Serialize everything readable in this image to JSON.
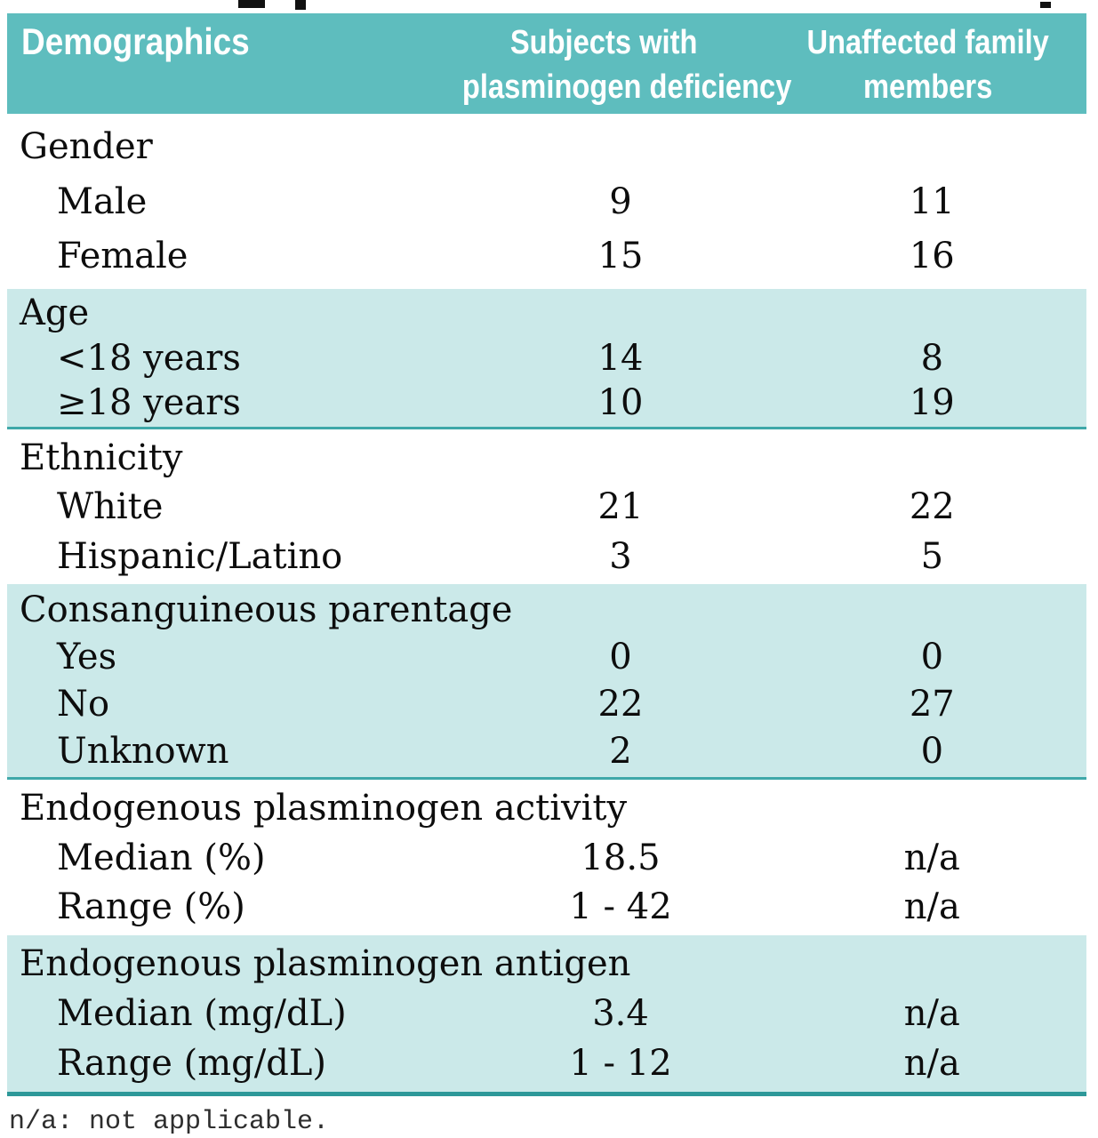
{
  "table": {
    "header": {
      "col1": "Demographics",
      "col2_line1": "Subjects with",
      "col2_line2": "plasminogen deficiency",
      "col3_line1": "Unaffected family",
      "col3_line2": "members"
    },
    "sections": [
      {
        "title": "Gender",
        "rows": [
          {
            "label": "Male",
            "v1": "9",
            "v2": "11"
          },
          {
            "label": "Female",
            "v1": "15",
            "v2": "16"
          }
        ]
      },
      {
        "title": "Age",
        "rows": [
          {
            "label": "<18 years",
            "v1": "14",
            "v2": "8"
          },
          {
            "label": "≥18 years",
            "v1": "10",
            "v2": "19"
          }
        ]
      },
      {
        "title": "Ethnicity",
        "rows": [
          {
            "label": "White",
            "v1": "21",
            "v2": "22"
          },
          {
            "label": "Hispanic/Latino",
            "v1": "3",
            "v2": "5"
          }
        ]
      },
      {
        "title": "Consanguineous parentage",
        "rows": [
          {
            "label": "Yes",
            "v1": "0",
            "v2": "0"
          },
          {
            "label": "No",
            "v1": "22",
            "v2": "27"
          },
          {
            "label": "Unknown",
            "v1": "2",
            "v2": "0"
          }
        ]
      },
      {
        "title": "Endogenous plasminogen activity",
        "rows": [
          {
            "label": "Median (%)",
            "v1": "18.5",
            "v2": "n/a"
          },
          {
            "label": "Range (%)",
            "v1": "1 - 42",
            "v2": "n/a"
          }
        ]
      },
      {
        "title": "Endogenous plasminogen antigen",
        "rows": [
          {
            "label": "Median (mg/dL)",
            "v1": "3.4",
            "v2": "n/a"
          },
          {
            "label": "Range (mg/dL)",
            "v1": "1 - 12",
            "v2": "n/a"
          }
        ]
      }
    ],
    "footnote": "n/a: not applicable."
  },
  "colors": {
    "header_background": "#5ebdbe",
    "shaded_band_background": "#cbe9e9",
    "band_rule": "#3fa8a9",
    "bottom_rule": "#2d9899",
    "header_text": "#ffffff",
    "body_text": "#0d0d0d",
    "footnote_text": "#2e2e2e"
  }
}
